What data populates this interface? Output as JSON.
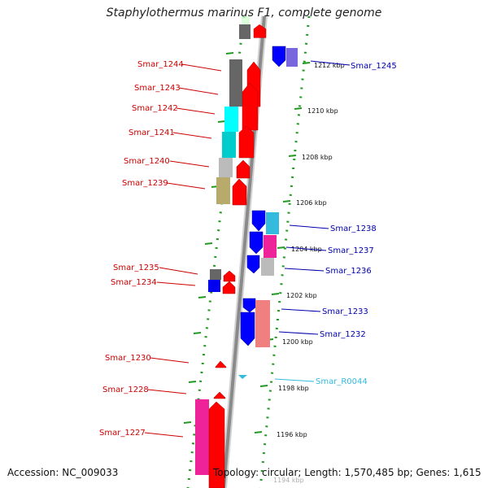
{
  "title": "Staphylothermus marinus F1, complete genome",
  "accession": "Accession: NC_009033",
  "topology": "Topology: circular; Length: 1,570,485 bp; Genes: 1,615",
  "colors": {
    "forward": "#ff0000",
    "reverse": "#0000ff",
    "rna": "#33bbdd",
    "backbone": "#888888",
    "dots": "#229922"
  },
  "kbp_ticks": [
    "1212 kbp",
    "1210 kbp",
    "1208 kbp",
    "1206 kbp",
    "1204 kbp",
    "1202 kbp",
    "1200 kbp",
    "1198 kbp",
    "1196 kbp",
    "1194 kbp"
  ],
  "genes_left": [
    "Smar_1244",
    "Smar_1243",
    "Smar_1242",
    "Smar_1241",
    "Smar_1240",
    "Smar_1239",
    "Smar_1235",
    "Smar_1234",
    "Smar_1230",
    "Smar_1228",
    "Smar_1227"
  ],
  "genes_right": [
    "Smar_1245",
    "Smar_1238",
    "Smar_1237",
    "Smar_1236",
    "Smar_1233",
    "Smar_1232",
    "Smar_R0044"
  ]
}
